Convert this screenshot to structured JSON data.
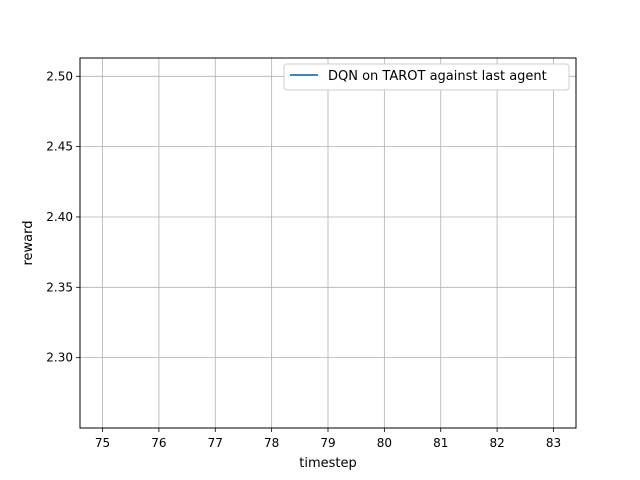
{
  "chart_data": {
    "type": "line",
    "title": "",
    "xlabel": "timestep",
    "ylabel": "reward",
    "xlim": [
      74.6,
      83.4
    ],
    "ylim": [
      2.25,
      2.513
    ],
    "xticks": [
      75,
      76,
      77,
      78,
      79,
      80,
      81,
      82,
      83
    ],
    "xtick_labels": [
      "75",
      "76",
      "77",
      "78",
      "79",
      "80",
      "81",
      "82",
      "83"
    ],
    "yticks": [
      2.3,
      2.35,
      2.4,
      2.45,
      2.5
    ],
    "ytick_labels": [
      "2.30",
      "2.35",
      "2.40",
      "2.45",
      "2.50"
    ],
    "grid": true,
    "legend_position": "upper-right",
    "series": [
      {
        "name": "DQN on TAROT against last agent",
        "color": "#1f77b4",
        "x": [],
        "y": []
      }
    ]
  }
}
